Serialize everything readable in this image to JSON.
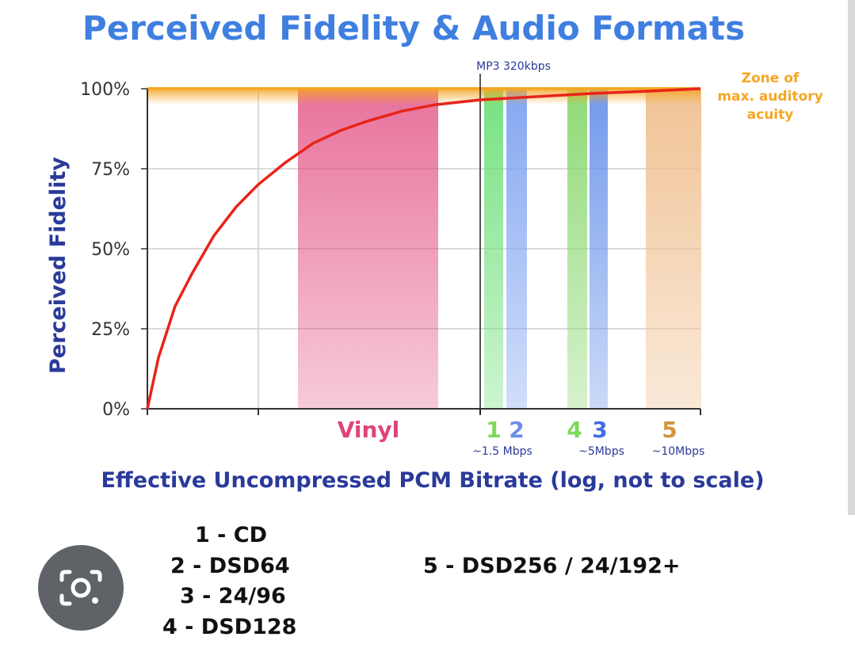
{
  "chart_data": {
    "type": "line",
    "title": "Perceived Fidelity & Audio Formats",
    "ylabel": "Perceived Fidelity",
    "xlabel": "Effective Uncompressed PCM Bitrate (log, not to scale)",
    "ylim": [
      0,
      100
    ],
    "yticks": [
      "0%",
      "25%",
      "50%",
      "75%",
      "100%"
    ],
    "grid": true,
    "series": [
      {
        "x_rel": [
          0,
          0.02,
          0.05,
          0.08,
          0.12,
          0.16,
          0.2,
          0.25,
          0.3,
          0.35,
          0.4,
          0.46,
          0.52,
          0.6,
          0.7,
          0.8,
          0.9,
          1.0
        ],
        "values": [
          0,
          16,
          32,
          42,
          54,
          63,
          70,
          77,
          83,
          87,
          90,
          93,
          95,
          96.5,
          97.5,
          98.5,
          99.2,
          100
        ],
        "color": "#e8241a"
      }
    ],
    "zone_label": "Zone of\nmax. auditory\nacuity",
    "zone_color": "#f5a623",
    "mp3_label": "MP3 320kbps",
    "vinyl": {
      "label": "Vinyl",
      "color": "#e0437a"
    },
    "format_bands": [
      {
        "num": "1",
        "color": "#6fe07a",
        "textColor": "#7ed860"
      },
      {
        "num": "2",
        "color": "#7ea2f0",
        "textColor": "#6a8fe8"
      },
      {
        "num": "4",
        "color": "#8ad870",
        "textColor": "#7ed860"
      },
      {
        "num": "3",
        "color": "#6a94ea",
        "textColor": "#3f6fe0"
      },
      {
        "num": "5",
        "color": "#f0c090",
        "textColor": "#d4943a"
      }
    ],
    "bitrate_labels": [
      "~1.5 Mbps",
      "~5Mbps",
      "~10Mbps"
    ]
  },
  "legend": {
    "col1": [
      "1 - CD",
      "2 - DSD64",
      "3 - 24/96",
      "4 - DSD128"
    ],
    "col2": [
      "5 - DSD256 / 24/192+"
    ]
  },
  "overlay": {
    "icon": "lens-camera-icon"
  }
}
